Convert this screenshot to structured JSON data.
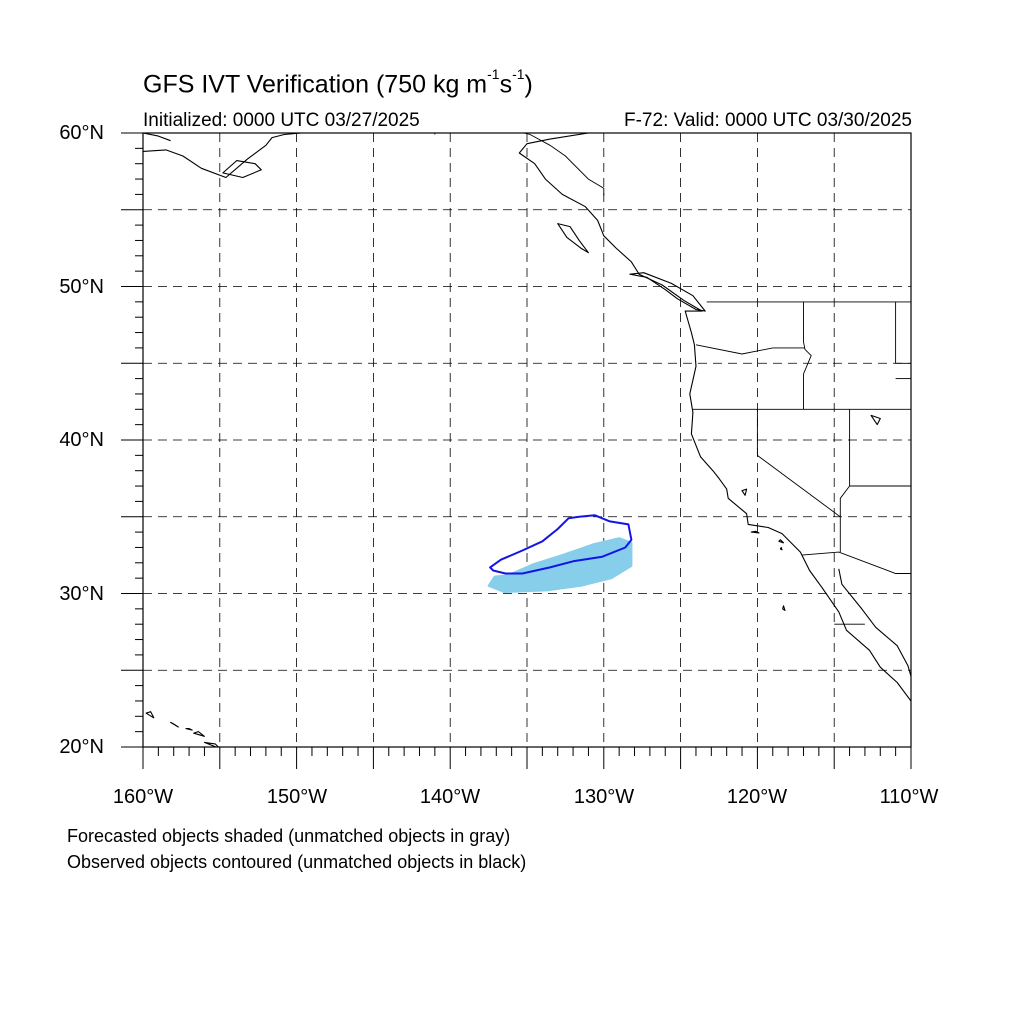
{
  "title": {
    "text": "GFS IVT Verification (750 kg m",
    "sup1": "-1",
    "mid": "s",
    "sup2": "-1",
    "close": ")"
  },
  "subtitle": {
    "initialized": "Initialized: 0000 UTC 03/27/2025",
    "valid": "F-72: Valid: 0000 UTC 03/30/2025"
  },
  "axes": {
    "y_labels": [
      "60°N",
      "50°N",
      "40°N",
      "30°N",
      "20°N"
    ],
    "x_labels": [
      "160°W",
      "150°W",
      "140°W",
      "130°W",
      "120°W",
      "110°W"
    ]
  },
  "legend": {
    "line1": "Forecasted objects shaded (unmatched objects in gray)",
    "line2": "Observed objects contoured (unmatched objects in black)"
  },
  "colors": {
    "forecast_fill": "#87ceeb",
    "observed_contour": "#1414e6",
    "coast": "#000000",
    "grid": "#000000"
  },
  "map_extent": {
    "lon": [
      -160,
      -110
    ],
    "lat": [
      20,
      60
    ]
  },
  "objects": {
    "forecast_shaded": [
      [
        -136.2,
        31.2
      ],
      [
        -134.6,
        31.9
      ],
      [
        -132.7,
        32.5
      ],
      [
        -130.7,
        33.2
      ],
      [
        -129.0,
        33.6
      ],
      [
        -128.2,
        33.3
      ],
      [
        -128.2,
        31.8
      ],
      [
        -129.5,
        31.0
      ],
      [
        -131.5,
        30.5
      ],
      [
        -133.7,
        30.2
      ],
      [
        -136.5,
        30.1
      ],
      [
        -137.5,
        30.5
      ],
      [
        -137.1,
        31.1
      ]
    ],
    "observed_contour": [
      [
        -137.4,
        31.7
      ],
      [
        -136.7,
        32.2
      ],
      [
        -135.3,
        32.8
      ],
      [
        -134.0,
        33.4
      ],
      [
        -133.0,
        34.2
      ],
      [
        -132.3,
        34.9
      ],
      [
        -131.6,
        35.0
      ],
      [
        -130.6,
        35.1
      ],
      [
        -129.6,
        34.7
      ],
      [
        -128.4,
        34.5
      ],
      [
        -128.2,
        33.5
      ],
      [
        -128.6,
        33.0
      ],
      [
        -130.1,
        32.4
      ],
      [
        -132.0,
        32.1
      ],
      [
        -133.5,
        31.7
      ],
      [
        -135.3,
        31.3
      ],
      [
        -136.4,
        31.3
      ],
      [
        -137.2,
        31.5
      ]
    ]
  },
  "geography": {
    "west_coast": [
      [
        -131.0,
        60.0
      ],
      [
        -133.5,
        59.6
      ],
      [
        -135.0,
        59.3
      ],
      [
        -135.5,
        58.7
      ],
      [
        -134.5,
        58.0
      ],
      [
        -133.8,
        57.0
      ],
      [
        -132.7,
        56.0
      ],
      [
        -131.2,
        55.2
      ],
      [
        -130.4,
        54.3
      ],
      [
        -130.0,
        53.3
      ],
      [
        -129.2,
        52.5
      ],
      [
        -128.2,
        51.6
      ],
      [
        -127.7,
        50.8
      ],
      [
        -126.2,
        50.1
      ],
      [
        -124.8,
        49.1
      ],
      [
        -123.6,
        48.4
      ],
      [
        -124.7,
        48.4
      ],
      [
        -124.3,
        47.0
      ],
      [
        -124.1,
        46.2
      ],
      [
        -124.0,
        44.8
      ],
      [
        -124.4,
        43.0
      ],
      [
        -124.2,
        41.8
      ],
      [
        -124.3,
        40.4
      ],
      [
        -123.7,
        38.9
      ],
      [
        -122.9,
        38.0
      ],
      [
        -122.5,
        37.5
      ],
      [
        -122.0,
        36.8
      ],
      [
        -121.9,
        36.2
      ],
      [
        -120.7,
        35.2
      ],
      [
        -120.6,
        34.5
      ],
      [
        -119.3,
        34.3
      ],
      [
        -118.4,
        33.9
      ],
      [
        -117.2,
        32.7
      ],
      [
        -116.6,
        31.5
      ],
      [
        -115.8,
        30.4
      ],
      [
        -114.7,
        28.8
      ],
      [
        -114.2,
        27.6
      ],
      [
        -112.7,
        26.3
      ],
      [
        -112.0,
        25.2
      ],
      [
        -110.9,
        24.2
      ],
      [
        -110.0,
        23.0
      ]
    ],
    "gulf_california": [
      [
        -114.7,
        31.6
      ],
      [
        -114.5,
        30.6
      ],
      [
        -113.2,
        29.0
      ],
      [
        -112.3,
        27.8
      ],
      [
        -110.9,
        26.6
      ],
      [
        -110.2,
        25.3
      ],
      [
        -110.0,
        24.6
      ]
    ],
    "vancouver_island": [
      [
        -128.3,
        50.8
      ],
      [
        -127.2,
        50.6
      ],
      [
        -126.0,
        49.8
      ],
      [
        -125.2,
        49.2
      ],
      [
        -124.0,
        48.5
      ],
      [
        -123.4,
        48.4
      ],
      [
        -124.2,
        49.4
      ],
      [
        -125.6,
        50.2
      ],
      [
        -127.4,
        50.9
      ],
      [
        -128.3,
        50.8
      ]
    ],
    "haida_gwaii": [
      [
        -133.0,
        54.1
      ],
      [
        -132.2,
        53.9
      ],
      [
        -131.6,
        53.0
      ],
      [
        -131.0,
        52.2
      ],
      [
        -131.5,
        52.5
      ],
      [
        -132.4,
        53.2
      ],
      [
        -133.0,
        54.1
      ]
    ],
    "alaska_coast": [
      [
        -160.0,
        58.8
      ],
      [
        -158.5,
        58.9
      ],
      [
        -157.4,
        58.5
      ],
      [
        -156.2,
        57.7
      ],
      [
        -154.6,
        57.1
      ],
      [
        -153.2,
        58.3
      ],
      [
        -152.0,
        59.2
      ],
      [
        -151.6,
        59.7
      ],
      [
        -150.8,
        59.9
      ],
      [
        -149.7,
        60.0
      ]
    ],
    "alaska_upper": [
      [
        -160.0,
        60.0
      ],
      [
        -159.0,
        59.8
      ],
      [
        -158.2,
        59.5
      ]
    ],
    "kodiak": [
      [
        -154.8,
        57.4
      ],
      [
        -153.5,
        57.1
      ],
      [
        -152.3,
        57.6
      ],
      [
        -152.7,
        58.0
      ],
      [
        -153.9,
        58.2
      ],
      [
        -154.8,
        57.4
      ]
    ],
    "lakes": [
      [
        [
          -121.0,
          36.7
        ],
        [
          -120.8,
          36.4
        ],
        [
          -120.7,
          36.8
        ],
        [
          -121.0,
          36.7
        ]
      ],
      [
        [
          -112.6,
          41.6
        ],
        [
          -112.2,
          41.0
        ],
        [
          -112.0,
          41.4
        ],
        [
          -112.6,
          41.6
        ]
      ]
    ],
    "channel_islands": [
      [
        [
          -120.4,
          34.0
        ],
        [
          -119.9,
          33.95
        ],
        [
          -120.1,
          34.05
        ],
        [
          -120.4,
          34.0
        ]
      ],
      [
        [
          -118.6,
          33.4
        ],
        [
          -118.3,
          33.3
        ],
        [
          -118.5,
          33.5
        ],
        [
          -118.6,
          33.4
        ]
      ],
      [
        [
          -118.5,
          32.9
        ],
        [
          -118.4,
          32.85
        ],
        [
          -118.45,
          33.0
        ],
        [
          -118.5,
          32.9
        ]
      ]
    ],
    "guadalupe": [
      [
        -118.3,
        29.2
      ],
      [
        -118.2,
        28.9
      ],
      [
        -118.35,
        29.0
      ],
      [
        -118.3,
        29.2
      ]
    ],
    "hawaii": [
      [
        [
          -159.8,
          22.2
        ],
        [
          -159.3,
          21.9
        ],
        [
          -159.5,
          22.3
        ],
        [
          -159.8,
          22.2
        ]
      ],
      [
        [
          -158.2,
          21.6
        ],
        [
          -157.7,
          21.3
        ],
        [
          -158.0,
          21.5
        ],
        [
          -158.2,
          21.6
        ]
      ],
      [
        [
          -157.2,
          21.2
        ],
        [
          -156.8,
          21.1
        ],
        [
          -157.0,
          21.2
        ],
        [
          -157.2,
          21.2
        ]
      ],
      [
        [
          -156.7,
          20.9
        ],
        [
          -156.0,
          20.7
        ],
        [
          -156.4,
          21.0
        ],
        [
          -156.7,
          20.9
        ]
      ],
      [
        [
          -156.0,
          20.3
        ],
        [
          -155.0,
          19.9
        ],
        [
          -155.3,
          20.2
        ],
        [
          -156.0,
          20.3
        ]
      ]
    ],
    "borders": [
      [
        [
          -141.0,
          60.0
        ],
        [
          -141.0,
          59.9
        ]
      ],
      [
        [
          -130.0,
          55.9
        ],
        [
          -130.0,
          56.4
        ],
        [
          -131.0,
          57.0
        ],
        [
          -132.5,
          58.5
        ],
        [
          -133.5,
          59.2
        ],
        [
          -134.8,
          59.9
        ],
        [
          -135.2,
          60.0
        ]
      ],
      [
        [
          -123.3,
          49.0
        ],
        [
          -110.0,
          49.0
        ]
      ],
      [
        [
          -124.2,
          42.0
        ],
        [
          -110.0,
          42.0
        ]
      ],
      [
        [
          -120.0,
          42.0
        ],
        [
          -120.0,
          39.0
        ],
        [
          -114.6,
          35.0
        ]
      ],
      [
        [
          -117.0,
          49.0
        ],
        [
          -117.0,
          46.4
        ],
        [
          -116.9,
          45.9
        ],
        [
          -116.5,
          45.5
        ],
        [
          -117.0,
          44.3
        ],
        [
          -117.0,
          42.0
        ]
      ],
      [
        [
          -114.0,
          42.0
        ],
        [
          -114.0,
          37.0
        ],
        [
          -114.6,
          36.2
        ],
        [
          -114.6,
          35.0
        ]
      ],
      [
        [
          -124.0,
          46.2
        ],
        [
          -121.0,
          45.6
        ],
        [
          -119.0,
          46.0
        ],
        [
          -116.9,
          46.0
        ]
      ],
      [
        [
          -111.0,
          49.0
        ],
        [
          -111.0,
          45.0
        ],
        [
          -110.0,
          45.0
        ]
      ],
      [
        [
          -114.0,
          37.0
        ],
        [
          -110.0,
          37.0
        ]
      ],
      [
        [
          -117.1,
          32.5
        ],
        [
          -114.7,
          32.7
        ],
        [
          -111.0,
          31.3
        ],
        [
          -110.0,
          31.3
        ]
      ],
      [
        [
          -114.6,
          35.0
        ],
        [
          -114.6,
          32.7
        ]
      ],
      [
        [
          -115.0,
          28.0
        ],
        [
          -113.0,
          28.0
        ]
      ],
      [
        [
          -110.0,
          44.0
        ],
        [
          -111.0,
          44.0
        ]
      ]
    ]
  }
}
